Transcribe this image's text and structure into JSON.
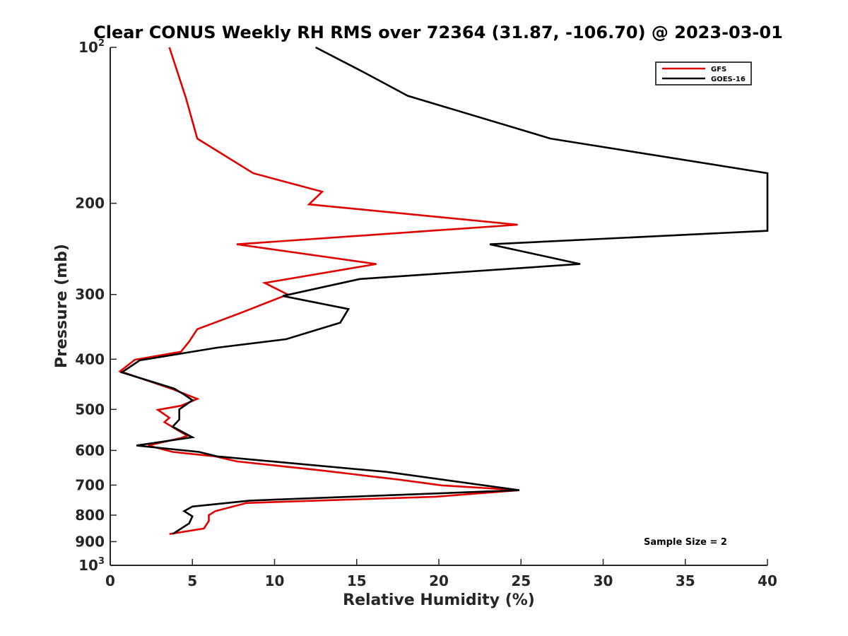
{
  "chart_data": {
    "type": "line",
    "title": "Clear CONUS Weekly RH RMS over 72364 (31.87, -106.70) @ 2023-03-01",
    "xlabel": "Relative Humidity (%)",
    "ylabel": "Pressure (mb)",
    "xlim": [
      0,
      40
    ],
    "ylim": [
      100,
      1000
    ],
    "y_scale": "log",
    "y_reversed": true,
    "grid": false,
    "legend_position": "top-right",
    "x_ticks": [
      0,
      5,
      10,
      15,
      20,
      25,
      30,
      35,
      40
    ],
    "x_tick_labels": [
      "0",
      "5",
      "10",
      "15",
      "20",
      "25",
      "30",
      "35",
      "40"
    ],
    "y_ticks": [
      {
        "value": 100,
        "base": "10",
        "exp": "2"
      },
      {
        "value": 200,
        "label": "200"
      },
      {
        "value": 300,
        "label": "300"
      },
      {
        "value": 400,
        "label": "400"
      },
      {
        "value": 500,
        "label": "500"
      },
      {
        "value": 600,
        "label": "600"
      },
      {
        "value": 700,
        "label": "700"
      },
      {
        "value": 800,
        "label": "800"
      },
      {
        "value": 900,
        "label": "900"
      },
      {
        "value": 1000,
        "base": "10",
        "exp": "3"
      }
    ],
    "series": [
      {
        "name": "GFS",
        "color": "#e00000",
        "points": [
          [
            3.6,
            100
          ],
          [
            4.6,
            125
          ],
          [
            5.3,
            150
          ],
          [
            8.7,
            175
          ],
          [
            12.9,
            190
          ],
          [
            12.1,
            201
          ],
          [
            24.8,
            220
          ],
          [
            7.7,
            240
          ],
          [
            16.2,
            262
          ],
          [
            9.4,
            285
          ],
          [
            10.8,
            300
          ],
          [
            7.9,
            326
          ],
          [
            5.3,
            350
          ],
          [
            4.8,
            370
          ],
          [
            4.3,
            387
          ],
          [
            1.5,
            401
          ],
          [
            0.6,
            422
          ],
          [
            3.8,
            457
          ],
          [
            5.3,
            477
          ],
          [
            4.3,
            492
          ],
          [
            2.9,
            501
          ],
          [
            3.6,
            519
          ],
          [
            3.3,
            529
          ],
          [
            4.3,
            553
          ],
          [
            4.7,
            562
          ],
          [
            4.3,
            568
          ],
          [
            2.3,
            587
          ],
          [
            3.8,
            604
          ],
          [
            6.4,
            616
          ],
          [
            7.7,
            630
          ],
          [
            12.9,
            656
          ],
          [
            17.7,
            684
          ],
          [
            20.2,
            701
          ],
          [
            24.9,
            716
          ],
          [
            19.8,
            737
          ],
          [
            8.3,
            758
          ],
          [
            6.4,
            786
          ],
          [
            6.0,
            800
          ],
          [
            6.0,
            821
          ],
          [
            5.7,
            849
          ],
          [
            3.6,
            870
          ]
        ]
      },
      {
        "name": "GOES-16",
        "color": "#000000",
        "points": [
          [
            12.5,
            100
          ],
          [
            15.5,
            112
          ],
          [
            18.1,
            124
          ],
          [
            26.8,
            150
          ],
          [
            40,
            175
          ],
          [
            40,
            226
          ],
          [
            23.1,
            240
          ],
          [
            28.6,
            262
          ],
          [
            15.2,
            280
          ],
          [
            10.5,
            302
          ],
          [
            14.5,
            320
          ],
          [
            14.0,
            340
          ],
          [
            10.7,
            366
          ],
          [
            6.5,
            380
          ],
          [
            1.8,
            402
          ],
          [
            0.7,
            424
          ],
          [
            3.9,
            456
          ],
          [
            4.5,
            468
          ],
          [
            5.0,
            480
          ],
          [
            4.2,
            500
          ],
          [
            4.2,
            523
          ],
          [
            3.8,
            540
          ],
          [
            5.0,
            566
          ],
          [
            1.6,
            587
          ],
          [
            5.4,
            604
          ],
          [
            6.5,
            616
          ],
          [
            16.8,
            660
          ],
          [
            24.9,
            716
          ],
          [
            8.5,
            750
          ],
          [
            5.0,
            770
          ],
          [
            4.5,
            786
          ],
          [
            5.0,
            804
          ],
          [
            4.8,
            830
          ],
          [
            3.8,
            870
          ]
        ]
      }
    ],
    "annotation": "Sample Size = 2"
  }
}
